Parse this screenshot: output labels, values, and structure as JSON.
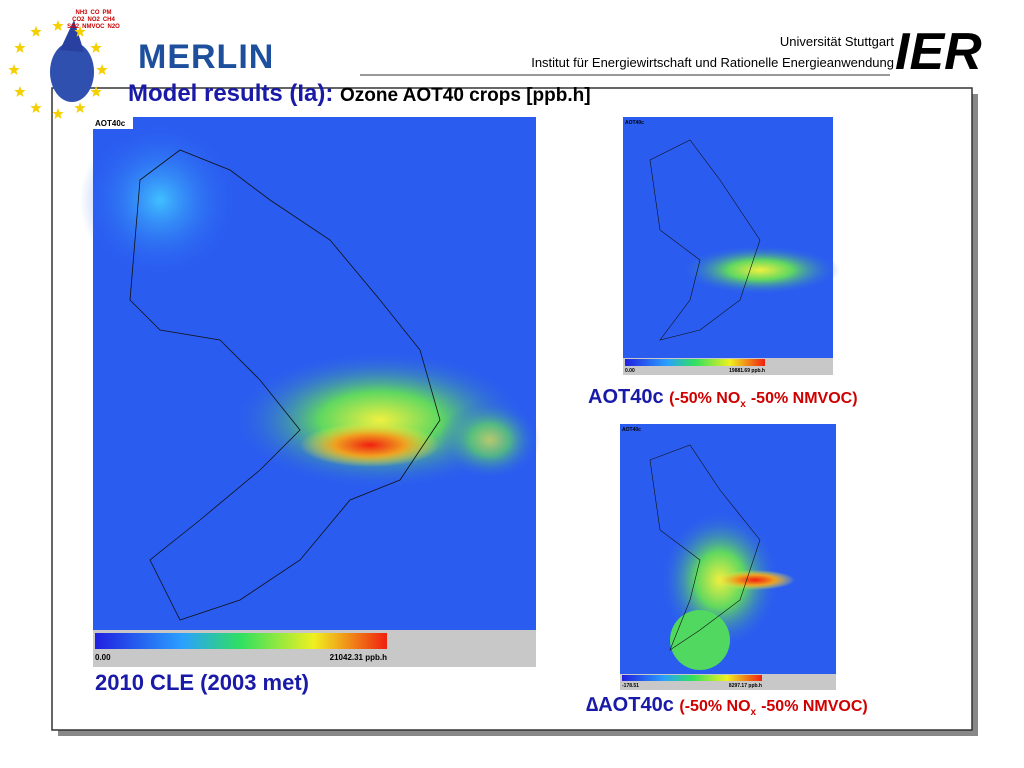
{
  "header": {
    "logo_molecules": [
      "NH3",
      "CO",
      "PM",
      "CO2",
      "NO2",
      "CH4",
      "SO2",
      "NMVOC",
      "N2O"
    ],
    "logo_text": "MERLIN",
    "university": "Universität Stuttgart",
    "institute": "Institut für Energiewirtschaft und Rationelle Energieanwendung",
    "ier": "IER"
  },
  "title": {
    "main": "Model results (Ia):",
    "sub": "Ozone AOT40 crops [ppb.h]"
  },
  "maps": [
    {
      "label": "AOT40c",
      "min": "0.00",
      "max": "21042.31 ppb.h",
      "caption": "2010 CLE (2003 met)"
    },
    {
      "label": "AOT40c",
      "min": "0.00",
      "max": "19881.69 ppb.h",
      "caption": {
        "name": "AOT40c",
        "scenario": "(-50% NO",
        "subscript": "x",
        "rest": "-50% NMVOC)"
      }
    },
    {
      "label": "AOT40c",
      "min": "-178.51",
      "max": "8297.17 ppb.h",
      "caption": {
        "name": "∆AOT40c",
        "scenario": "(-50% NO",
        "subscript": "x",
        "rest": "-50% NMVOC)"
      }
    }
  ]
}
